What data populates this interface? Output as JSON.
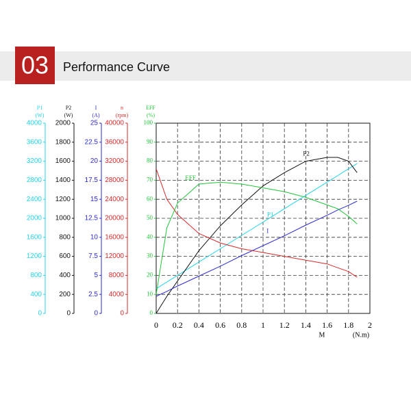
{
  "header": {
    "number": "03",
    "title": "Performance Curve"
  },
  "chart_data": {
    "type": "line",
    "x": [
      0,
      0.1,
      0.2,
      0.4,
      0.6,
      0.8,
      1.0,
      1.2,
      1.4,
      1.6,
      1.7,
      1.8,
      1.88
    ],
    "xlim": [
      0,
      2
    ],
    "xticks": [
      0,
      0.2,
      0.4,
      0.6,
      0.8,
      1,
      1.2,
      1.4,
      1.6,
      1.8,
      2
    ],
    "xlabel": "M",
    "xunit": "(N.m)",
    "grid": true,
    "axes": [
      {
        "label": "P1",
        "unit": "(W)",
        "color": "#22d3e6",
        "ylim": [
          0,
          4000
        ],
        "yticks": [
          0,
          400,
          800,
          1200,
          1600,
          2000,
          2400,
          2800,
          3200,
          3600,
          4000
        ],
        "curve_label": "P1",
        "values": [
          520,
          660,
          800,
          1080,
          1360,
          1640,
          1920,
          2200,
          2480,
          2760,
          2900,
          3040,
          3150
        ]
      },
      {
        "label": "P2",
        "unit": "(W)",
        "color": "#111111",
        "ylim": [
          0,
          2000
        ],
        "yticks": [
          0,
          200,
          400,
          600,
          800,
          1000,
          1200,
          1400,
          1600,
          1800,
          2000
        ],
        "curve_label": "P2",
        "values": [
          0,
          180,
          340,
          660,
          920,
          1140,
          1340,
          1480,
          1600,
          1640,
          1640,
          1600,
          1480
        ]
      },
      {
        "label": "I",
        "unit": "(A)",
        "color": "#2b2bd0",
        "ylim": [
          0,
          25
        ],
        "yticks": [
          0,
          2.5,
          5,
          7.5,
          10,
          12.5,
          15,
          17.5,
          20,
          22.5,
          25
        ],
        "curve_label": "I",
        "values": [
          2.25,
          2.9,
          3.6,
          4.9,
          6.2,
          7.6,
          8.9,
          10.2,
          11.6,
          12.9,
          13.6,
          14.2,
          14.75
        ]
      },
      {
        "label": "n",
        "unit": "(rpm)",
        "color": "#d62828",
        "ylim": [
          0,
          40000
        ],
        "yticks": [
          0,
          4000,
          8000,
          12000,
          16000,
          20000,
          24000,
          28000,
          32000,
          36000,
          40000
        ],
        "values": [
          30400,
          24000,
          20800,
          16800,
          14800,
          13600,
          12800,
          12000,
          11200,
          10400,
          9600,
          8800,
          7600
        ]
      },
      {
        "label": "EFF",
        "unit": "(%)",
        "color": "#22c43a",
        "ylim": [
          0,
          100
        ],
        "yticks": [
          0,
          10,
          20,
          30,
          40,
          50,
          60,
          70,
          80,
          90,
          100
        ],
        "curve_label": "EFF",
        "values": [
          10,
          45,
          58,
          68,
          69,
          68,
          66,
          64,
          61,
          57,
          55,
          51,
          47
        ]
      }
    ]
  }
}
